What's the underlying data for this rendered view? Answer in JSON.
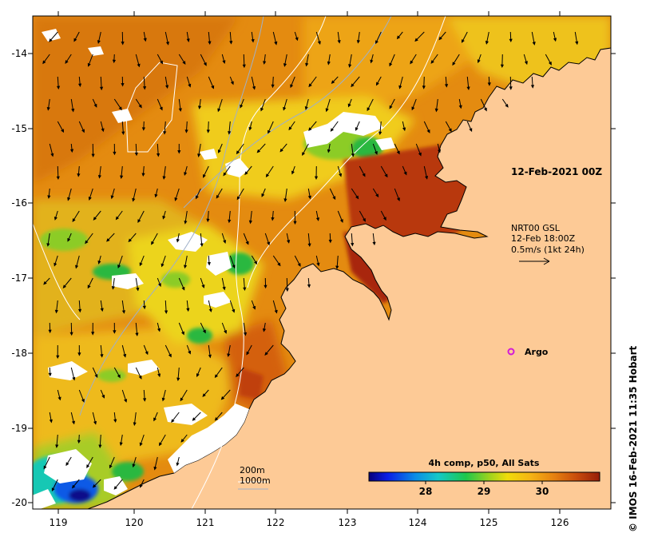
{
  "map": {
    "lon_ticks": [
      "119",
      "120",
      "121",
      "122",
      "123",
      "124",
      "125",
      "126"
    ],
    "lat_ticks": [
      "-14",
      "-15",
      "-16",
      "-17",
      "-18",
      "-19",
      "-20"
    ],
    "time_label": "12-Feb-2021 00Z",
    "current_title": "NRT00 GSL",
    "current_time": "12-Feb 18:00Z",
    "current_scale": "0.5m/s (1kt 24h)",
    "argo_label": "Argo",
    "bathy_200": "200m",
    "bathy_1000": "1000m",
    "credit": "© IMOS 16-Feb-2021 11:35 Hobart"
  },
  "legend": {
    "title": "4h comp, p50, All Sats",
    "ticks": [
      "28",
      "29",
      "30"
    ]
  },
  "colors": {
    "land": "#fdca96",
    "sst_warm": "#e58a0c",
    "sst_hot": "#a8280e",
    "sst_mid": "#f2c019",
    "sst_cool": "#27b840",
    "cloud": "#ffffff",
    "argo": "#d21ad7"
  }
}
